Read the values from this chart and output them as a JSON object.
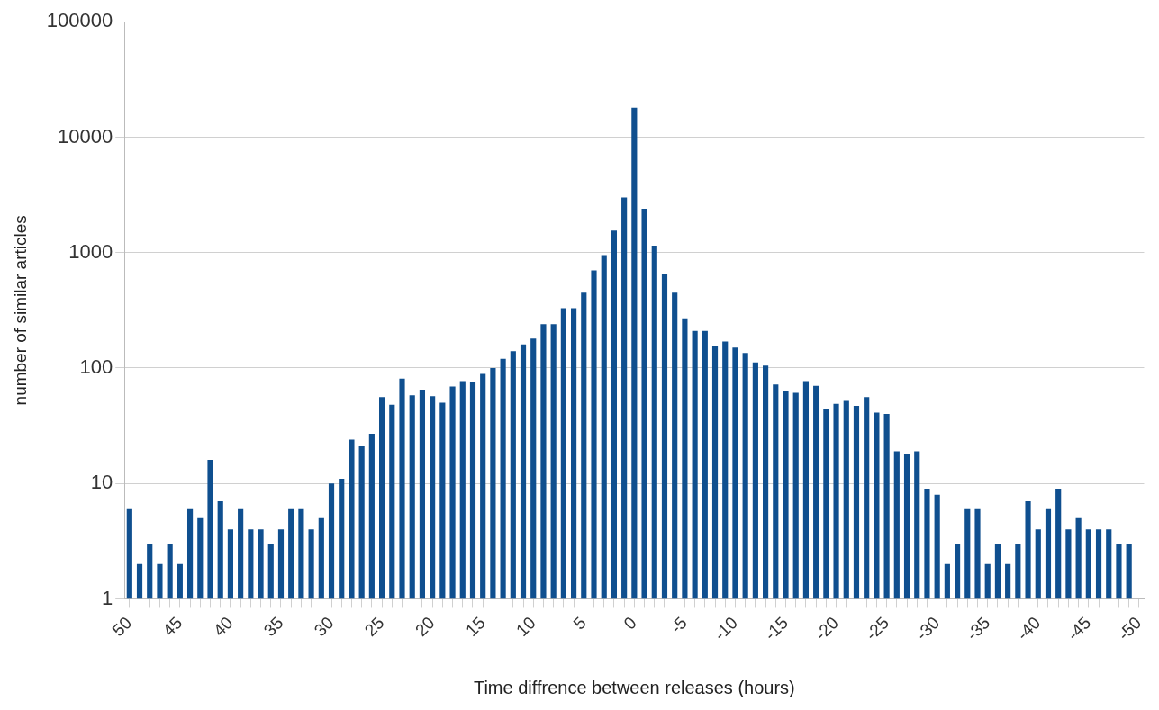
{
  "chart_data": {
    "type": "bar",
    "xlabel": "Time diffrence between releases (hours)",
    "ylabel": "number of similar articles",
    "categories": [
      "50",
      null,
      null,
      null,
      null,
      "45",
      null,
      null,
      null,
      null,
      "40",
      null,
      null,
      null,
      null,
      "35",
      null,
      null,
      null,
      null,
      "30",
      null,
      null,
      null,
      null,
      "25",
      null,
      null,
      null,
      null,
      "20",
      null,
      null,
      null,
      null,
      "15",
      null,
      null,
      null,
      null,
      "10",
      null,
      null,
      null,
      null,
      "5",
      null,
      null,
      null,
      null,
      "0",
      null,
      null,
      null,
      null,
      "-5",
      null,
      null,
      null,
      null,
      "-10",
      null,
      null,
      null,
      null,
      "-15",
      null,
      null,
      null,
      null,
      "-20",
      null,
      null,
      null,
      null,
      "-25",
      null,
      null,
      null,
      null,
      "-30",
      null,
      null,
      null,
      null,
      "-35",
      null,
      null,
      null,
      null,
      "-40",
      null,
      null,
      null,
      null,
      "-45",
      null,
      null,
      null,
      null,
      "-50"
    ],
    "values": [
      6,
      2,
      3,
      2,
      3,
      2,
      6,
      5,
      16,
      7,
      4,
      6,
      4,
      4,
      3,
      4,
      6,
      6,
      4,
      5,
      10,
      11,
      24,
      21,
      27,
      56,
      48,
      81,
      58,
      65,
      57,
      50,
      69,
      77,
      76,
      89,
      100,
      120,
      140,
      160,
      180,
      240,
      240,
      330,
      330,
      450,
      700,
      950,
      1550,
      3000,
      18000,
      2400,
      1150,
      650,
      450,
      270,
      210,
      210,
      155,
      170,
      150,
      135,
      112,
      105,
      72,
      63,
      61,
      77,
      70,
      44,
      49,
      52,
      47,
      56,
      41,
      40,
      19,
      18,
      19,
      9,
      8,
      2,
      3,
      6,
      6,
      2,
      3,
      2,
      3,
      7,
      4,
      6,
      9,
      4,
      5,
      4,
      4,
      4,
      3,
      3,
      null
    ],
    "color": "#0f4f8f",
    "log": true,
    "ylim": [
      1,
      100000
    ],
    "yticks": [
      1,
      10,
      100,
      1000,
      10000,
      100000
    ],
    "grid": "y"
  }
}
